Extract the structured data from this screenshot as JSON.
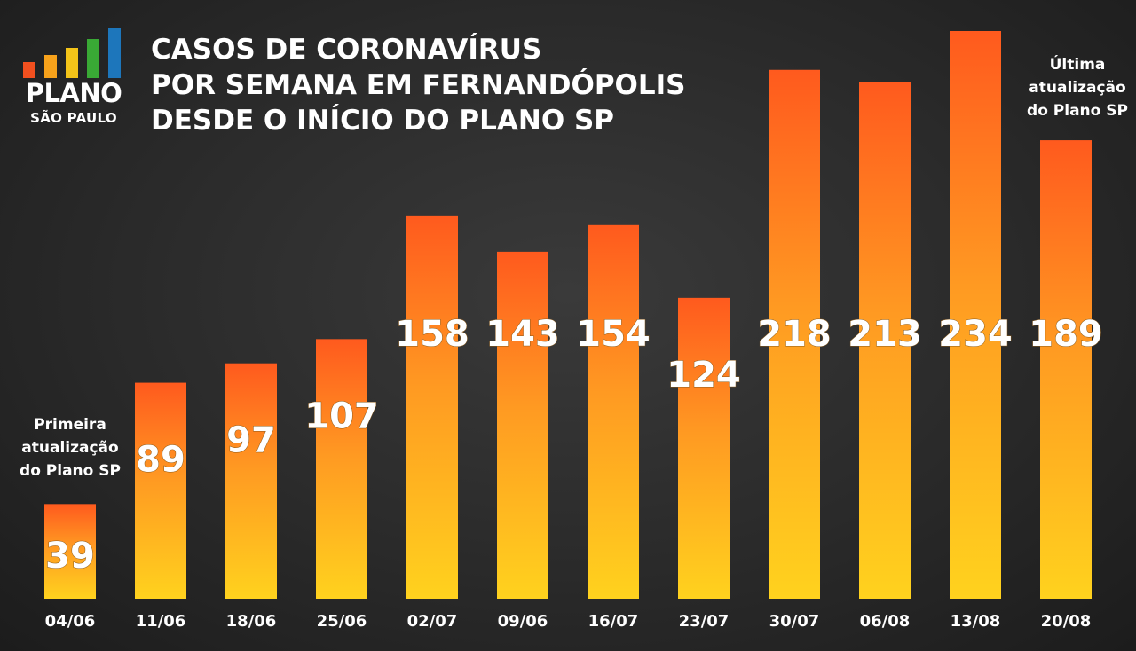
{
  "logo": {
    "line1": "PLANO",
    "line2": "SÃO PAULO",
    "bar_colors": [
      "#f2501f",
      "#f7a21b",
      "#f4c419",
      "#39a935",
      "#1d76bb"
    ]
  },
  "title_lines": [
    "CASOS DE CORONAVÍRUS",
    "POR SEMANA EM FERNANDÓPOLIS",
    "DESDE O INÍCIO DO PLANO SP"
  ],
  "annotations": {
    "first": [
      "Primeira",
      "atualização",
      "do Plano SP"
    ],
    "last": [
      "Última",
      "atualização",
      "do Plano SP"
    ]
  },
  "colors": {
    "bar_top": "#ff5a1e",
    "bar_bottom": "#ffd21e",
    "text": "#ffffff"
  },
  "chart_data": {
    "type": "bar",
    "title": "CASOS DE CORONAVÍRUS POR SEMANA EM FERNANDÓPOLIS DESDE O INÍCIO DO PLANO SP",
    "categories": [
      "04/06",
      "11/06",
      "18/06",
      "25/06",
      "02/07",
      "09/06",
      "16/07",
      "23/07",
      "30/07",
      "06/08",
      "13/08",
      "20/08"
    ],
    "values": [
      39,
      89,
      97,
      107,
      158,
      143,
      154,
      124,
      218,
      213,
      234,
      189
    ],
    "xlabel": "",
    "ylabel": "",
    "ylim": [
      0,
      234
    ],
    "grid": false,
    "legend": "none"
  }
}
